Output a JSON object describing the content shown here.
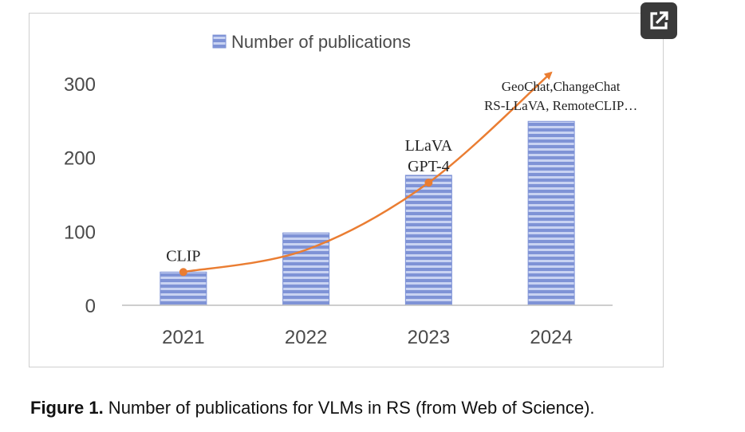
{
  "chart_data": {
    "type": "bar",
    "categories": [
      "2021",
      "2022",
      "2023",
      "2024"
    ],
    "series": [
      {
        "name": "Number of publications",
        "values": [
          45,
          98,
          176,
          249
        ]
      }
    ],
    "trend_line": {
      "values": [
        45,
        75,
        166,
        315
      ]
    },
    "ylim": [
      0,
      300
    ],
    "yticks": [
      0,
      100,
      200,
      300
    ],
    "legend": "top",
    "grid": false,
    "xlabel": "",
    "ylabel": "",
    "annotations": [
      {
        "category": "2021",
        "lines": [
          "CLIP"
        ]
      },
      {
        "category": "2023",
        "lines": [
          "LLaVA",
          "GPT-4"
        ]
      },
      {
        "category": "2024",
        "lines": [
          "GeoChat,ChangeChat",
          "RS-LLaVA, RemoteCLIP…"
        ]
      }
    ],
    "colors": {
      "bar": "#7f93d6",
      "bar_stripe": "#c9d3f2",
      "trend": "#ea7d32",
      "axis": "#bdbdbd"
    }
  },
  "caption": {
    "label": "Figure 1.",
    "text": " Number of publications for VLMs in RS (from Web of Science)."
  },
  "toolbar": {
    "expand_icon": "external-link-icon"
  }
}
